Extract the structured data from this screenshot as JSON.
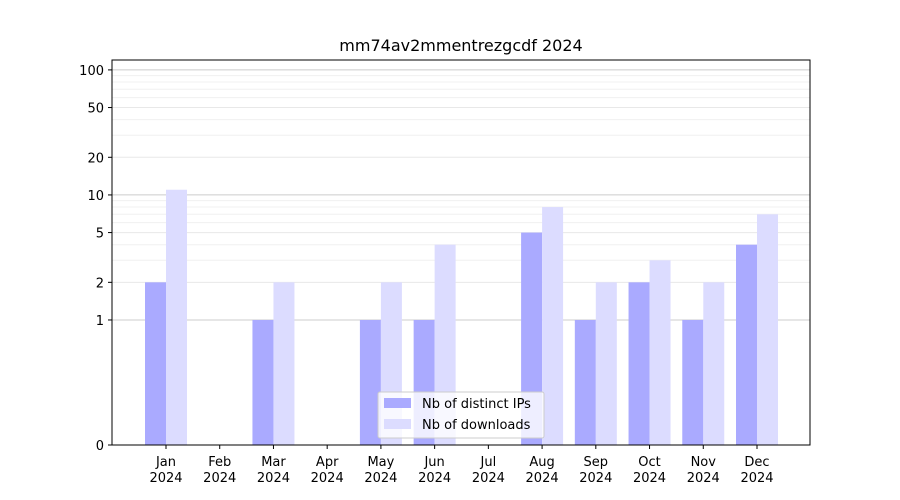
{
  "chart_data": {
    "type": "bar",
    "title": "mm74av2mmentrezgcdf 2024",
    "categories": [
      "Jan\n2024",
      "Feb\n2024",
      "Mar\n2024",
      "Apr\n2024",
      "May\n2024",
      "Jun\n2024",
      "Jul\n2024",
      "Aug\n2024",
      "Sep\n2024",
      "Oct\n2024",
      "Nov\n2024",
      "Dec\n2024"
    ],
    "series": [
      {
        "name": "Nb of distinct IPs",
        "color": "#aaaaff",
        "values": [
          2,
          0,
          1,
          0,
          1,
          1,
          0,
          5,
          1,
          2,
          1,
          4
        ]
      },
      {
        "name": "Nb of downloads",
        "color": "#dcdcff",
        "values": [
          11,
          0,
          2,
          0,
          2,
          4,
          0,
          8,
          2,
          3,
          2,
          7
        ]
      }
    ],
    "yscale": "symlog",
    "ylim": [
      0,
      120
    ],
    "yticks": [
      0,
      1,
      2,
      5,
      10,
      20,
      50,
      100
    ],
    "legend_position": "lower-center",
    "grid": true
  }
}
